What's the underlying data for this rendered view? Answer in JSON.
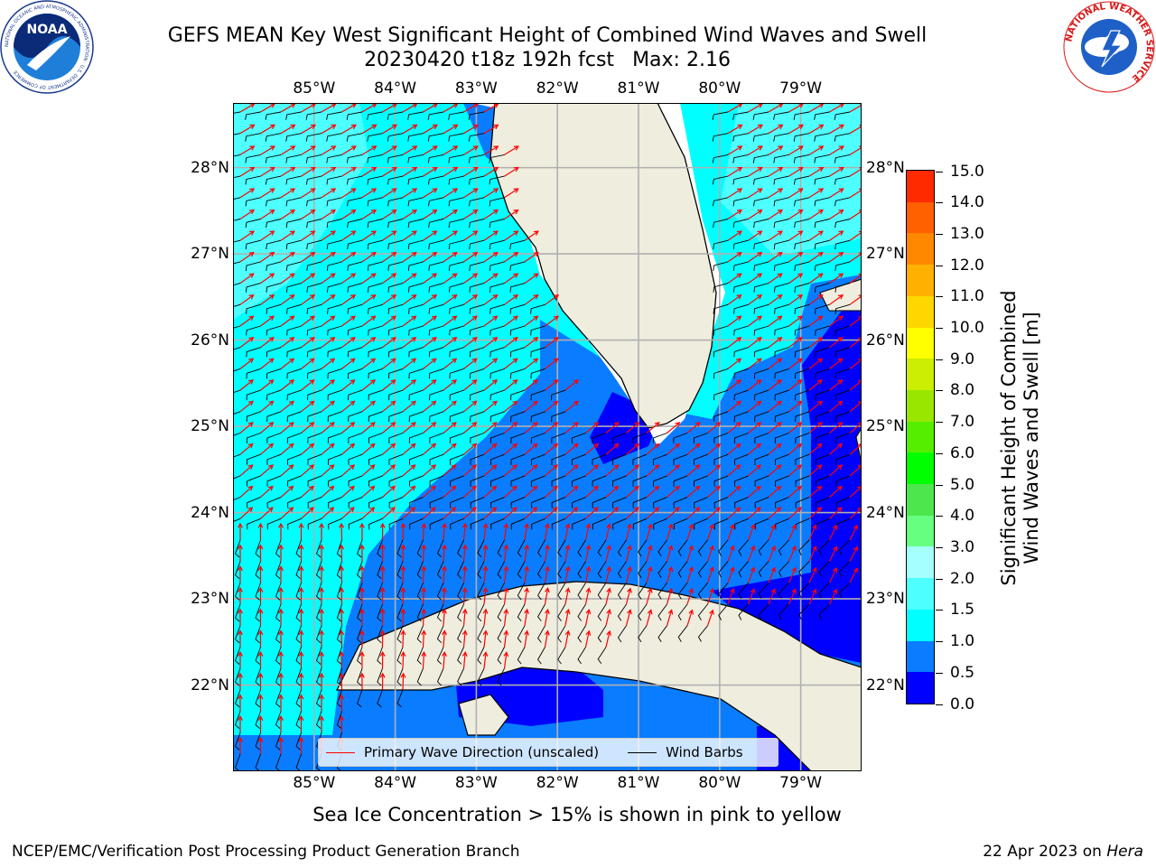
{
  "header": {
    "title_line1": "GEFS MEAN Key West Significant Height of Combined Wind Waves and Swell",
    "title_line2_left": "20230420 t18z 192h fcst",
    "title_line2_right": "Max: 2.16"
  },
  "logos": {
    "left": "NOAA",
    "left_ring": "NATIONAL OCEANIC AND ATMOSPHERIC ADMINISTRATION · U.S. DEPARTMENT OF COMMERCE",
    "right_ring": "NATIONAL WEATHER SERVICE"
  },
  "map": {
    "lon_range": [
      -86.0,
      -78.25
    ],
    "lat_range": [
      21.0,
      28.75
    ],
    "lon_ticks": [
      {
        "value": -85,
        "label": "85°W"
      },
      {
        "value": -84,
        "label": "84°W"
      },
      {
        "value": -83,
        "label": "83°W"
      },
      {
        "value": -82,
        "label": "82°W"
      },
      {
        "value": -81,
        "label": "81°W"
      },
      {
        "value": -80,
        "label": "80°W"
      },
      {
        "value": -79,
        "label": "79°W"
      }
    ],
    "lat_ticks": [
      {
        "value": 28,
        "label": "28°N"
      },
      {
        "value": 27,
        "label": "27°N"
      },
      {
        "value": 26,
        "label": "26°N"
      },
      {
        "value": 25,
        "label": "25°N"
      },
      {
        "value": 24,
        "label": "24°N"
      },
      {
        "value": 23,
        "label": "23°N"
      },
      {
        "value": 22,
        "label": "22°N"
      }
    ],
    "colors": {
      "land": "#efedde",
      "coast": "#000000",
      "grid": "#b0b0b0",
      "wave_arrow": "#ff0000",
      "wind_barb": "#000000",
      "no_data": "#ffffff"
    }
  },
  "legend": {
    "items": [
      {
        "label": "Primary Wave Direction (unscaled)",
        "color": "#ff0000"
      },
      {
        "label": "Wind Barbs",
        "color": "#000000"
      }
    ]
  },
  "colorbar": {
    "title_line1": "Significant Height of Combined",
    "title_line2": "Wind Waves and Swell [m]",
    "levels": [
      {
        "value": 0.0,
        "label": "0.0"
      },
      {
        "value": 0.5,
        "label": "0.5"
      },
      {
        "value": 1.0,
        "label": "1.0"
      },
      {
        "value": 1.5,
        "label": "1.5"
      },
      {
        "value": 2.0,
        "label": "2.0"
      },
      {
        "value": 3.0,
        "label": "3.0"
      },
      {
        "value": 4.0,
        "label": "4.0"
      },
      {
        "value": 5.0,
        "label": "5.0"
      },
      {
        "value": 6.0,
        "label": "6.0"
      },
      {
        "value": 7.0,
        "label": "7.0"
      },
      {
        "value": 8.0,
        "label": "8.0"
      },
      {
        "value": 9.0,
        "label": "9.0"
      },
      {
        "value": 10.0,
        "label": "10.0"
      },
      {
        "value": 11.0,
        "label": "11.0"
      },
      {
        "value": 12.0,
        "label": "12.0"
      },
      {
        "value": 13.0,
        "label": "13.0"
      },
      {
        "value": 14.0,
        "label": "14.0"
      },
      {
        "value": 15.0,
        "label": "15.0"
      }
    ],
    "colors": [
      "#0000ff",
      "#0a7cff",
      "#00ffff",
      "#4dffff",
      "#a6ffff",
      "#66ff80",
      "#4de64d",
      "#00ff00",
      "#55ee00",
      "#99e600",
      "#ccee00",
      "#ffff00",
      "#ffd700",
      "#ffb000",
      "#ff8800",
      "#ff6000",
      "#ff2a00"
    ]
  },
  "chart_data": {
    "type": "heatmap",
    "variable": "Significant Height of Combined Wind Waves and Swell",
    "units": "m",
    "max": 2.16,
    "fill_zones": [
      {
        "range": [
          1.0,
          1.5
        ],
        "approx_region": "eastern Gulf of Mexico west of Florida, Yucatan Channel west, Atlantic east of Florida 25.5–28.75N"
      },
      {
        "range": [
          1.5,
          2.0
        ],
        "approx_region": "northwest Gulf 26–28.5N, 84–86W; Atlantic near 79–78.5W 28N"
      },
      {
        "range": [
          0.5,
          1.0
        ],
        "approx_region": "southeastern Gulf, Florida Straits, north coast of Cuba"
      },
      {
        "range": [
          0.0,
          0.5
        ],
        "approx_region": "Florida Bay, Bahamas banks east of 79W, south of Cuba"
      }
    ]
  },
  "notes": {
    "sea_ice": "Sea Ice Concentration > 15% is shown in pink to yellow"
  },
  "footer": {
    "left": "NCEP/EMC/Verification Post Processing Product Generation Branch",
    "right_date": "22 Apr 2023 on",
    "right_host": "Hera"
  }
}
